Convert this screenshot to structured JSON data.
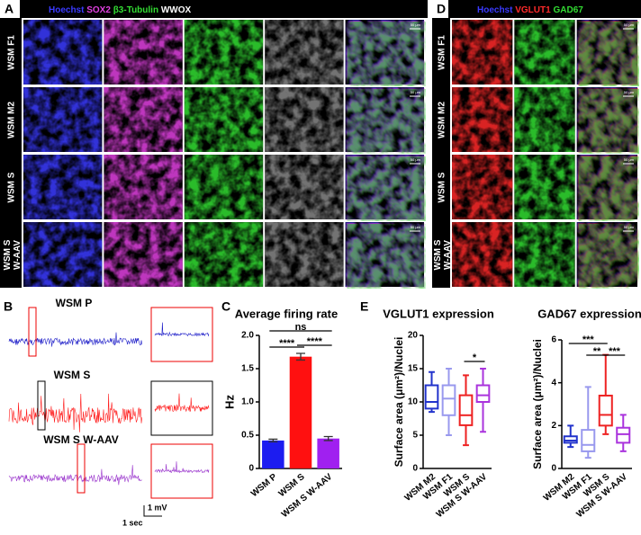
{
  "panel_a": {
    "letter": "A",
    "header": [
      {
        "text": "Hoechst",
        "color": "#3a3aff"
      },
      {
        "text": "SOX2",
        "color": "#e040e0"
      },
      {
        "text": "β3-Tubulin",
        "color": "#33dd33"
      },
      {
        "text": "WWOX",
        "color": "#ffffff"
      }
    ],
    "rows": [
      "WSM F1",
      "WSM M2",
      "WSM S",
      "WSM S W-AAV"
    ],
    "scale_bar": "50 μm"
  },
  "panel_d": {
    "letter": "D",
    "header": [
      {
        "text": "Hoechst",
        "color": "#3a3aff"
      },
      {
        "text": "VGLUT1",
        "color": "#ff2a2a"
      },
      {
        "text": "GAD67",
        "color": "#33dd33"
      }
    ],
    "rows": [
      "WSM F1",
      "WSM M2",
      "WSM S",
      "WSM S W-AAV"
    ],
    "scale_bar": "50 μm"
  },
  "panel_b": {
    "letter": "B",
    "traces": [
      {
        "label": "WSM P",
        "color": "#1c1cc8"
      },
      {
        "label": "WSM S",
        "color": "#ff1a1a"
      },
      {
        "label": "WSM S W-AAV",
        "color": "#9933cc"
      }
    ],
    "scale_y": "1 mV",
    "scale_x": "1 sec"
  },
  "panel_e": {
    "letter": "E"
  },
  "chart_data": [
    {
      "type": "bar",
      "letter": "C",
      "title": "Average firing rate",
      "y_label": "Hz",
      "categories": [
        "WSM P",
        "WSM S",
        "WSM S W-AAV"
      ],
      "values": [
        0.42,
        1.68,
        0.45
      ],
      "errors": [
        0.02,
        0.05,
        0.03
      ],
      "colors": [
        "#1c1cf0",
        "#ff1010",
        "#a020f0"
      ],
      "ylim": [
        0,
        2
      ],
      "yticks": [
        0,
        0.5,
        {
          "value": 1,
          "label": "1.0"
        },
        1.5,
        {
          "value": 2,
          "label": "2.0"
        }
      ],
      "annotations": [
        "****",
        "****",
        "ns"
      ]
    },
    {
      "type": "box",
      "title": "VGLUT1 expression",
      "y_label": "Surface area (μm²)/Nuclei",
      "categories": [
        "WSM M2",
        "WSM F1",
        "WSM S",
        "WSM S W-AAV"
      ],
      "colors": [
        "#2233cc",
        "#9999ee",
        "#ee2222",
        "#aa33dd"
      ],
      "min": [
        8.5,
        5,
        3.5,
        5.5
      ],
      "q1": [
        9,
        8,
        6.5,
        10
      ],
      "median": [
        10,
        10.5,
        8,
        11
      ],
      "q3": [
        12.5,
        12.5,
        11,
        12.5
      ],
      "max": [
        14.5,
        15,
        14,
        15
      ],
      "ylim": [
        0,
        20
      ],
      "yticks": [
        0,
        5,
        10,
        15,
        20
      ],
      "annotations": [
        "*"
      ]
    },
    {
      "type": "box",
      "title": "GAD67 expression",
      "y_label": "Surface area (μm²)/Nuclei",
      "categories": [
        "WSM M2",
        "WSM F1",
        "WSM S",
        "WSM S W-AAV"
      ],
      "colors": [
        "#2233cc",
        "#9999ee",
        "#ee2222",
        "#aa33dd"
      ],
      "min": [
        1.0,
        0.5,
        1.6,
        0.8
      ],
      "q1": [
        1.2,
        0.8,
        2.0,
        1.2
      ],
      "median": [
        1.3,
        1.1,
        2.5,
        1.6
      ],
      "q3": [
        1.5,
        1.8,
        3.4,
        1.9
      ],
      "max": [
        2.0,
        3.8,
        5.3,
        2.5
      ],
      "ylim": [
        0,
        6
      ],
      "yticks": [
        0,
        2,
        4,
        6
      ],
      "annotations": [
        "***",
        "**",
        "***"
      ]
    }
  ]
}
